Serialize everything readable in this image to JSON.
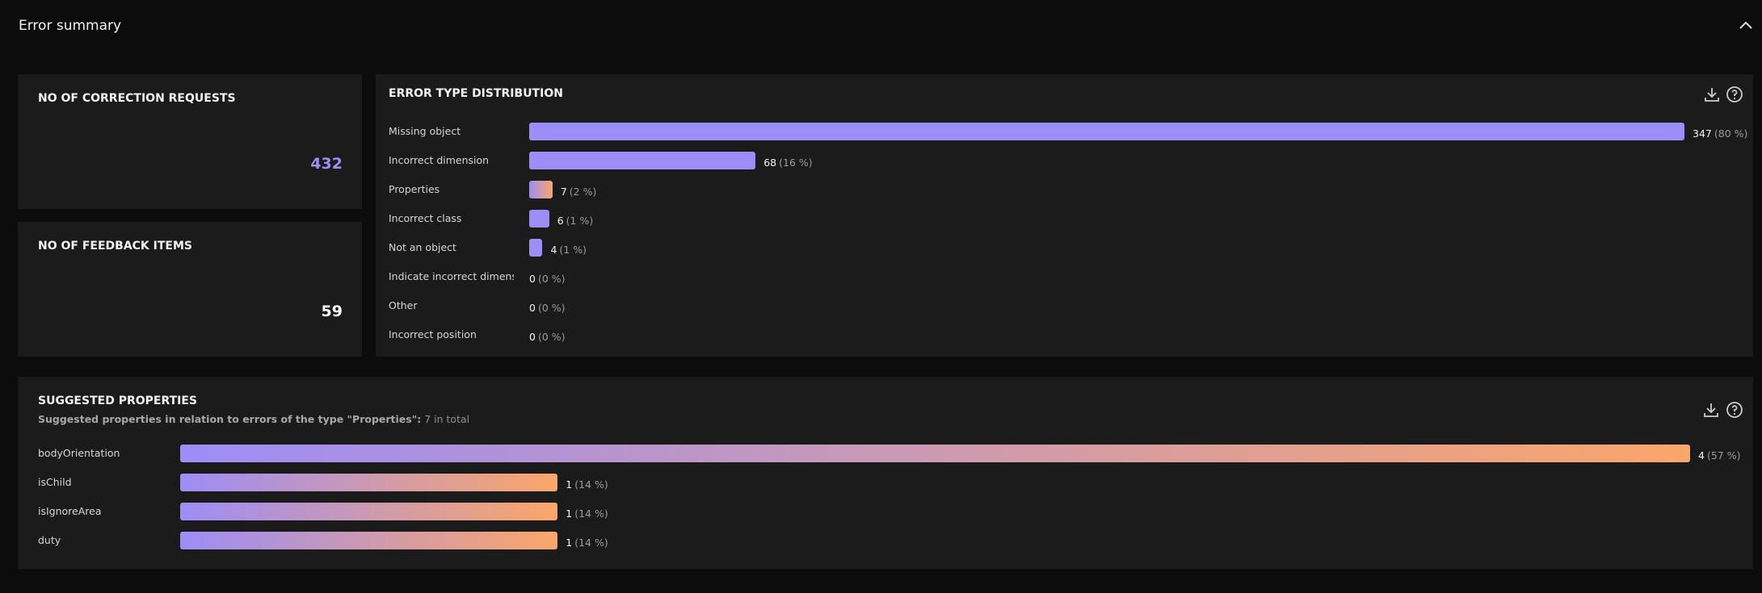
{
  "header": {
    "title": "Error summary"
  },
  "cards": [
    {
      "title": "NO OF CORRECTION REQUESTS",
      "value": 432,
      "color": "#9d8df7"
    },
    {
      "title": "NO OF FEEDBACK ITEMS",
      "value": 59,
      "color": "#ffffff"
    }
  ],
  "distribution": {
    "title": "ERROR TYPE DISTRIBUTION",
    "rows": [
      {
        "label": "Missing object",
        "count": 347,
        "percent": "(80 %)",
        "colors": [
          "#9d8df7"
        ]
      },
      {
        "label": "Incorrect dimension",
        "count": 68,
        "percent": "(16 %)",
        "colors": [
          "#9d8df7"
        ]
      },
      {
        "label": "Properties",
        "count": 7,
        "percent": "(2 %)",
        "colors": [
          "#9d8df7",
          "#fba66a"
        ]
      },
      {
        "label": "Incorrect class",
        "count": 6,
        "percent": "(1 %)",
        "colors": [
          "#9d8df7"
        ]
      },
      {
        "label": "Not an object",
        "count": 4,
        "percent": "(1 %)",
        "colors": [
          "#9d8df7"
        ]
      },
      {
        "label": "Indicate incorrect dimensi...",
        "count": 0,
        "percent": "(0 %)",
        "colors": [
          "#9d8df7"
        ]
      },
      {
        "label": "Other",
        "count": 0,
        "percent": "(0 %)",
        "colors": [
          "#9d8df7"
        ]
      },
      {
        "label": "Incorrect position",
        "count": 0,
        "percent": "(0 %)",
        "colors": [
          "#9d8df7"
        ]
      }
    ]
  },
  "suggested": {
    "title": "SUGGESTED PROPERTIES",
    "subtitle": "Suggested properties in relation to errors of the type \"Properties\":",
    "total": "7 in total",
    "rows": [
      {
        "label": "bodyOrientation",
        "count": 4,
        "percent": "(57 %)",
        "colors": [
          "#9d8df7",
          "#fba66a"
        ]
      },
      {
        "label": "isChild",
        "count": 1,
        "percent": "(14 %)",
        "colors": [
          "#9d8df7",
          "#fba66a"
        ]
      },
      {
        "label": "isIgnoreArea",
        "count": 1,
        "percent": "(14 %)",
        "colors": [
          "#9d8df7",
          "#fba66a"
        ]
      },
      {
        "label": "duty",
        "count": 1,
        "percent": "(14 %)",
        "colors": [
          "#9d8df7",
          "#fba66a"
        ]
      }
    ]
  }
}
